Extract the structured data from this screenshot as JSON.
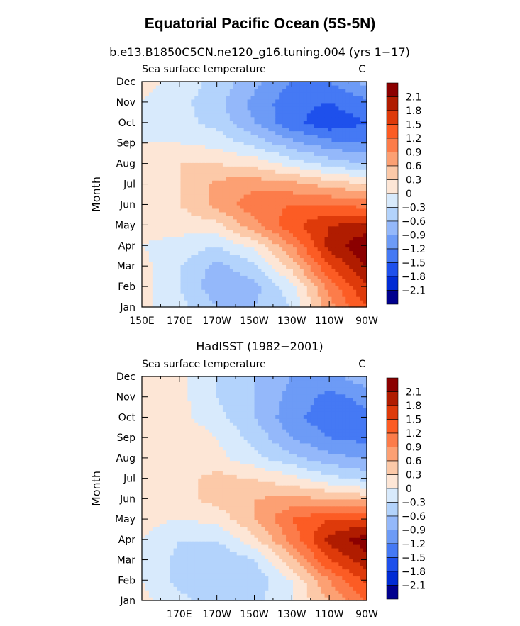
{
  "title": "Equatorial Pacific Ocean (5S-5N)",
  "colorbar": {
    "labels": [
      "2.1",
      "1.8",
      "1.5",
      "1.2",
      "0.9",
      "0.6",
      "0.3",
      "0",
      "−0.3",
      "−0.6",
      "−0.9",
      "−1.2",
      "−1.5",
      "−1.8",
      "−2.1"
    ],
    "colors": [
      "#8b0000",
      "#b01c00",
      "#de3a0a",
      "#fc5c24",
      "#fc7c4a",
      "#fca073",
      "#fcc9a8",
      "#fde6d6",
      "#d8eafc",
      "#b3d3fc",
      "#94b8fa",
      "#6d9bf6",
      "#4579f4",
      "#1e50ec",
      "#002bd4",
      "#00008e"
    ]
  },
  "chart_data": [
    {
      "type": "heatmap",
      "title": "b.e13.B1850C5CN.ne120_g16.tuning.004 (yrs 1−17)",
      "left_label": "Sea surface temperature",
      "right_label": "C",
      "ylabel": "Month",
      "xlabel": "",
      "x_ticks": [
        "150E",
        "170E",
        "170W",
        "150W",
        "130W",
        "110W",
        "90W"
      ],
      "x_tick_lon": [
        150,
        170,
        190,
        210,
        230,
        250,
        270
      ],
      "y_ticks": [
        "Jan",
        "Feb",
        "Mar",
        "Apr",
        "May",
        "Jun",
        "Jul",
        "Aug",
        "Sep",
        "Oct",
        "Nov",
        "Dec"
      ],
      "xlim": [
        150,
        270
      ],
      "lon": [
        150,
        170,
        190,
        210,
        230,
        250,
        270
      ],
      "months": [
        "Jan",
        "Feb",
        "Mar",
        "Apr",
        "May",
        "Jun",
        "Jul",
        "Aug",
        "Sep",
        "Oct",
        "Nov",
        "Dec"
      ],
      "values": [
        [
          0.1,
          -0.2,
          -0.6,
          -0.6,
          -0.3,
          0.8,
          1.5
        ],
        [
          0.1,
          -0.3,
          -0.8,
          -0.7,
          -0.1,
          1.0,
          1.8
        ],
        [
          0.1,
          -0.3,
          -0.7,
          -0.4,
          0.4,
          1.5,
          2.1
        ],
        [
          0.0,
          -0.1,
          -0.3,
          0.1,
          0.9,
          1.9,
          2.4
        ],
        [
          0.1,
          0.1,
          0.2,
          0.8,
          1.4,
          1.8,
          1.9
        ],
        [
          0.2,
          0.3,
          0.7,
          1.1,
          1.2,
          1.2,
          1.1
        ],
        [
          0.1,
          0.3,
          0.7,
          0.8,
          0.7,
          0.5,
          0.3
        ],
        [
          0.1,
          0.3,
          0.3,
          0.2,
          -0.1,
          -0.4,
          -0.6
        ],
        [
          0.0,
          0.0,
          -0.1,
          -0.4,
          -0.8,
          -1.1,
          -1.2
        ],
        [
          -0.1,
          -0.2,
          -0.4,
          -0.9,
          -1.4,
          -1.7,
          -1.5
        ],
        [
          0.0,
          -0.2,
          -0.5,
          -1.0,
          -1.4,
          -1.5,
          -1.3
        ],
        [
          0.1,
          -0.1,
          -0.4,
          -0.8,
          -1.2,
          -1.2,
          -0.8
        ]
      ]
    },
    {
      "type": "heatmap",
      "title": "HadISST (1982−2001)",
      "left_label": "Sea surface temperature",
      "right_label": "C",
      "ylabel": "Month",
      "xlabel": "",
      "x_ticks": [
        "170E",
        "170W",
        "150W",
        "130W",
        "110W",
        "90W"
      ],
      "x_tick_lon": [
        170,
        190,
        210,
        230,
        250,
        270
      ],
      "y_ticks": [
        "Jan",
        "Feb",
        "Mar",
        "Apr",
        "May",
        "Jun",
        "Jul",
        "Aug",
        "Sep",
        "Oct",
        "Nov",
        "Dec"
      ],
      "xlim": [
        150,
        270
      ],
      "lon": [
        150,
        170,
        190,
        210,
        230,
        250,
        270
      ],
      "months": [
        "Jan",
        "Feb",
        "Mar",
        "Apr",
        "May",
        "Jun",
        "Jul",
        "Aug",
        "Sep",
        "Oct",
        "Nov",
        "Dec"
      ],
      "values": [
        [
          0.1,
          -0.2,
          -0.5,
          -0.4,
          0.0,
          0.6,
          1.2
        ],
        [
          0.0,
          -0.4,
          -0.6,
          -0.5,
          0.0,
          0.9,
          1.6
        ],
        [
          0.0,
          -0.4,
          -0.6,
          -0.3,
          0.5,
          1.5,
          2.0
        ],
        [
          0.0,
          -0.3,
          -0.3,
          0.2,
          1.0,
          1.9,
          2.3
        ],
        [
          0.1,
          0.0,
          0.1,
          0.6,
          1.2,
          1.5,
          1.5
        ],
        [
          0.2,
          0.2,
          0.4,
          0.6,
          0.7,
          0.6,
          0.5
        ],
        [
          0.1,
          0.2,
          0.4,
          0.3,
          0.1,
          -0.2,
          -0.4
        ],
        [
          0.0,
          0.1,
          0.1,
          -0.2,
          -0.5,
          -0.8,
          -0.9
        ],
        [
          0.0,
          0.3,
          0.0,
          -0.4,
          -0.9,
          -1.2,
          -1.3
        ],
        [
          0.1,
          0.1,
          -0.2,
          -0.6,
          -1.1,
          -1.4,
          -1.3
        ],
        [
          0.2,
          0.1,
          -0.3,
          -0.6,
          -1.0,
          -1.3,
          -1.1
        ],
        [
          0.2,
          0.1,
          -0.3,
          -0.6,
          -0.9,
          -1.0,
          -0.7
        ]
      ]
    }
  ]
}
